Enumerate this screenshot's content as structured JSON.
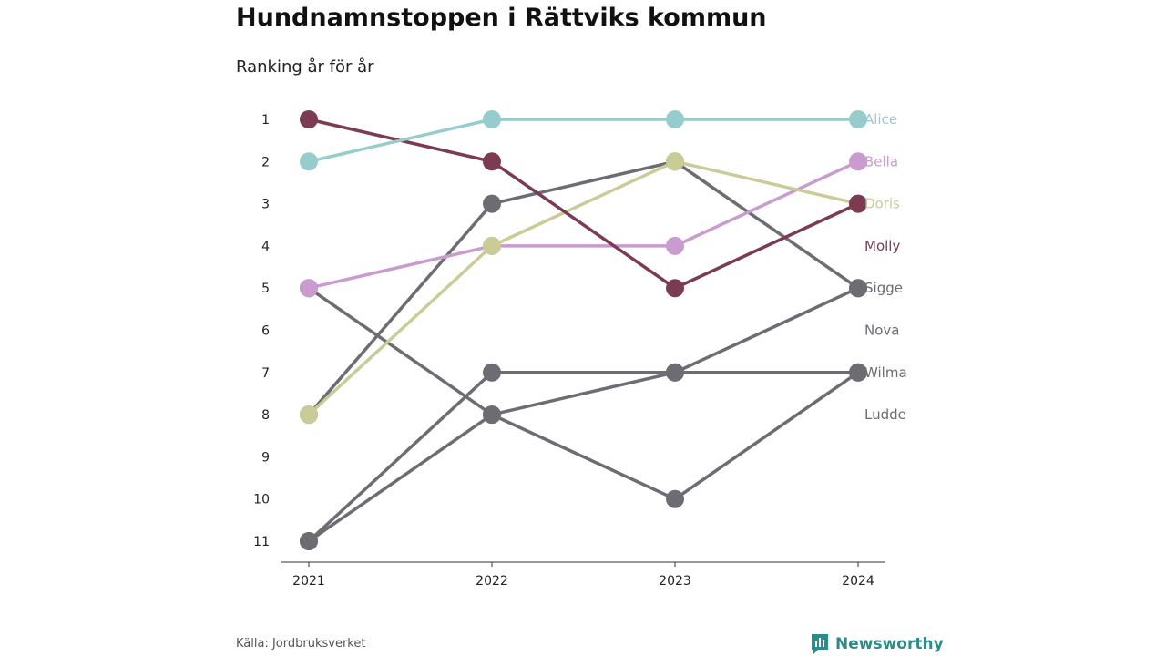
{
  "title": "Hundnamnstoppen i Rättviks kommun",
  "subtitle": "Ranking år för år",
  "source": "Källa: Jordbruksverket",
  "brand": "Newsworthy",
  "colors": {
    "alice": "#96cccb",
    "bella": "#c99bcf",
    "doris": "#c9cc97",
    "molly": "#7b3b52",
    "gray": "#6d6c72",
    "brand": "#2e8b8b"
  },
  "chart_data": {
    "type": "line",
    "subtype": "bump",
    "x": [
      "2021",
      "2022",
      "2023",
      "2024"
    ],
    "y_ticks": [
      "1",
      "2",
      "3",
      "4",
      "5",
      "6",
      "7",
      "8",
      "9",
      "10",
      "11"
    ],
    "ylim": [
      1,
      11
    ],
    "y_reversed": true,
    "grid": false,
    "series": [
      {
        "name": "Alice",
        "color": "#96cccb",
        "ranks": [
          2,
          1,
          1,
          1
        ]
      },
      {
        "name": "Bella",
        "color": "#c99bcf",
        "ranks": [
          5,
          4,
          4,
          2
        ]
      },
      {
        "name": "Doris",
        "color": "#c9cc97",
        "ranks": [
          8,
          4,
          2,
          3
        ]
      },
      {
        "name": "Molly",
        "color": "#7b3b52",
        "ranks": [
          1,
          2,
          5,
          3
        ]
      },
      {
        "name": "Sigge",
        "color": "#6d6c72",
        "ranks": [
          8,
          3,
          2,
          5
        ]
      },
      {
        "name": "Nova",
        "color": "#6d6c72",
        "ranks": [
          5,
          8,
          10,
          7
        ]
      },
      {
        "name": "Wilma",
        "color": "#6d6c72",
        "ranks": [
          11,
          7,
          7,
          7
        ]
      },
      {
        "name": "Ludde",
        "color": "#6d6c72",
        "ranks": [
          11,
          8,
          7,
          5
        ]
      }
    ],
    "end_labels": [
      {
        "name": "Alice",
        "rank": 1,
        "color": "#96cccb"
      },
      {
        "name": "Bella",
        "rank": 2,
        "color": "#c99bcf"
      },
      {
        "name": "Doris",
        "rank": 3,
        "color": "#c9cc97"
      },
      {
        "name": "Molly",
        "rank": 4,
        "color": "#7b3b52"
      },
      {
        "name": "Sigge",
        "rank": 5,
        "color": "#6d6c72"
      },
      {
        "name": "Nova",
        "rank": 6,
        "color": "#6d6c72"
      },
      {
        "name": "Wilma",
        "rank": 7,
        "color": "#6d6c72"
      },
      {
        "name": "Ludde",
        "rank": 8,
        "color": "#6d6c72"
      }
    ]
  }
}
